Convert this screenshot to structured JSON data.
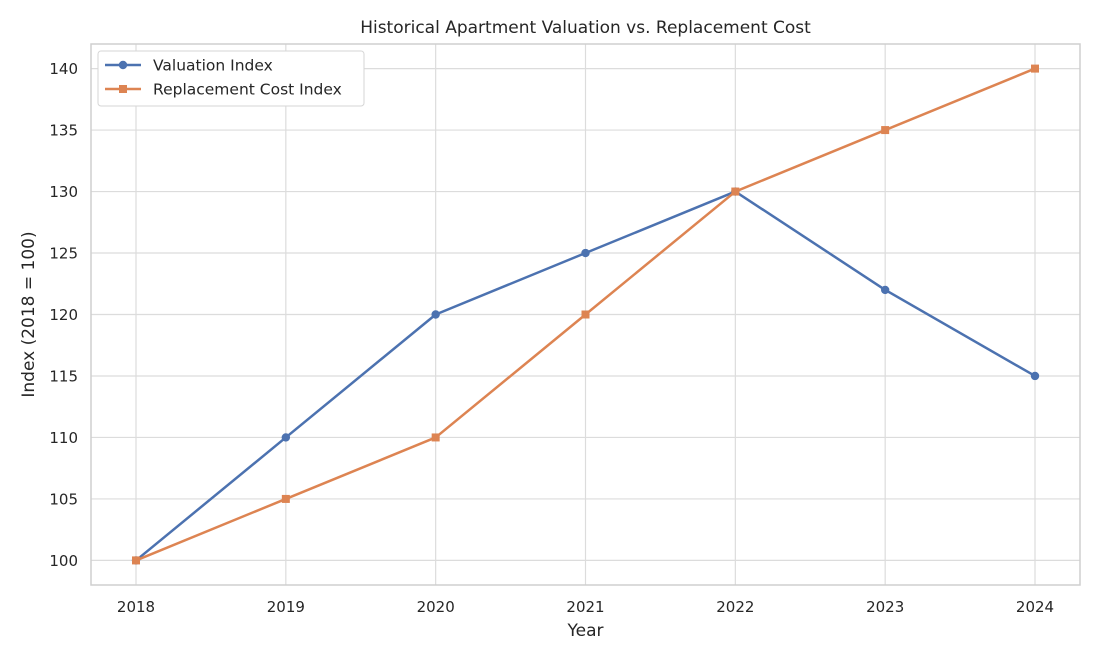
{
  "chart_data": {
    "type": "line",
    "title": "Historical Apartment Valuation vs. Replacement Cost",
    "xlabel": "Year",
    "ylabel": "Index (2018 = 100)",
    "categories": [
      "2018",
      "2019",
      "2020",
      "2021",
      "2022",
      "2023",
      "2024"
    ],
    "ylim": [
      98,
      142
    ],
    "yticks": [
      100,
      105,
      110,
      115,
      120,
      125,
      130,
      135,
      140
    ],
    "grid": true,
    "legend_position": "top-left",
    "series": [
      {
        "name": "Valuation Index",
        "color": "#4c72b0",
        "marker": "circle",
        "values": [
          100,
          110,
          120,
          125,
          130,
          122,
          115
        ]
      },
      {
        "name": "Replacement Cost Index",
        "color": "#dd8452",
        "marker": "square",
        "values": [
          100,
          105,
          110,
          120,
          130,
          135,
          140
        ]
      }
    ]
  }
}
